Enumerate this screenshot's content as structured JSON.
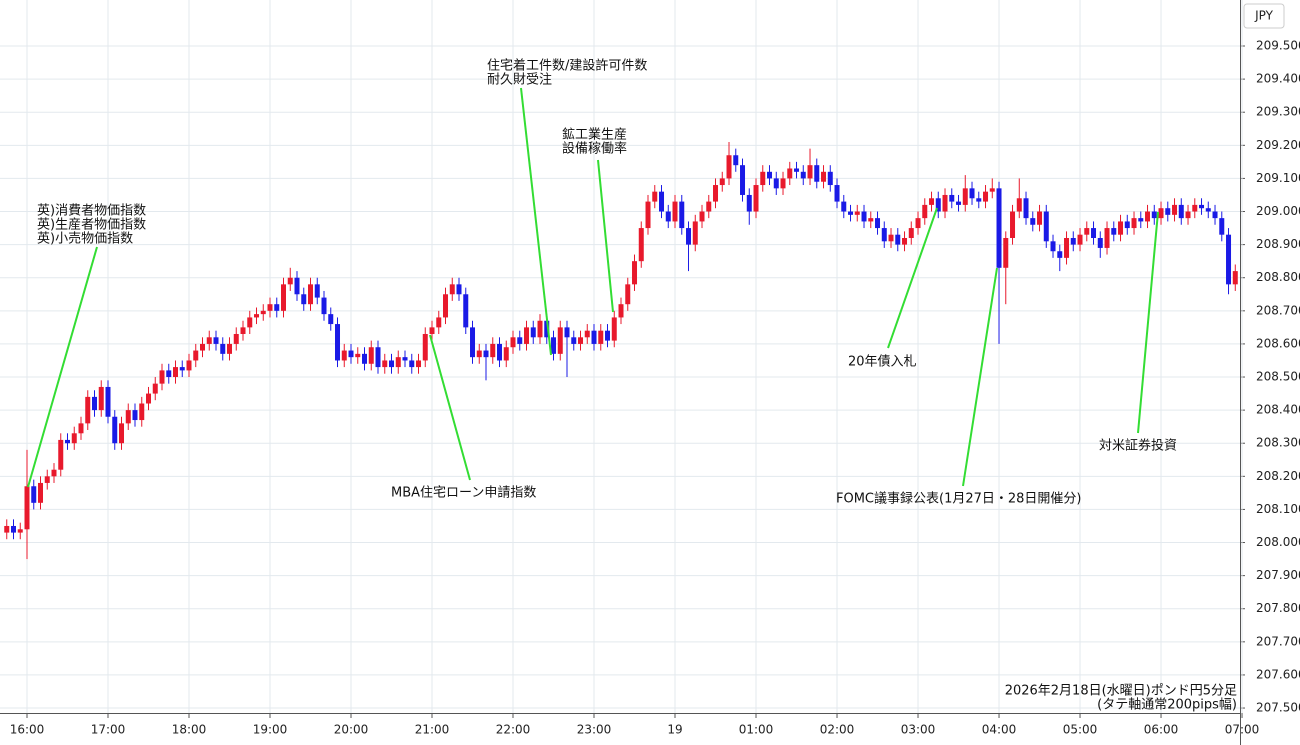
{
  "chart_data": {
    "type": "candlestick",
    "currency": "JPY",
    "footnote": [
      "2026年2月18日(水曜日)ポンド円5分足",
      "(タテ軸通常200pips幅)"
    ],
    "up_color": "#e8192c",
    "down_color": "#1a1ae6",
    "grid": true,
    "annotations": [
      {
        "text": [
          "英)消費者物価指数",
          "英)生産者物価指数",
          "英)小売物価指数"
        ]
      },
      {
        "text": [
          "住宅着工件数/建設許可件数",
          "耐久財受注"
        ]
      },
      {
        "text": [
          "鉱工業生産",
          "設備稼働率"
        ]
      },
      {
        "text": [
          "MBA住宅ローン申請指数"
        ]
      },
      {
        "text": [
          "20年債入札"
        ]
      },
      {
        "text": [
          "FOMC議事録公表(1月27日・28日開催分)"
        ]
      },
      {
        "text": [
          "対米証券投資"
        ]
      }
    ],
    "xlim": [
      -1,
      182.7
    ],
    "xticks": [
      {
        "value": 3,
        "label": "16:00"
      },
      {
        "value": 15,
        "label": "17:00"
      },
      {
        "value": 27,
        "label": "18:00"
      },
      {
        "value": 39,
        "label": "19:00"
      },
      {
        "value": 51,
        "label": "20:00"
      },
      {
        "value": 63,
        "label": "21:00"
      },
      {
        "value": 75,
        "label": "22:00"
      },
      {
        "value": 87,
        "label": "23:00"
      },
      {
        "value": 99,
        "label": "19"
      },
      {
        "value": 111,
        "label": "01:00"
      },
      {
        "value": 123,
        "label": "02:00"
      },
      {
        "value": 135,
        "label": "03:00"
      },
      {
        "value": 147,
        "label": "04:00"
      },
      {
        "value": 159,
        "label": "05:00"
      },
      {
        "value": 171,
        "label": "06:00"
      },
      {
        "value": 183,
        "label": "07:00"
      }
    ],
    "ylim": [
      207.485,
      209.639
    ],
    "yticks": [
      {
        "value": 207.5,
        "label": "207.500"
      },
      {
        "value": 207.6,
        "label": "207.600"
      },
      {
        "value": 207.7,
        "label": "207.700"
      },
      {
        "value": 207.8,
        "label": "207.800"
      },
      {
        "value": 207.9,
        "label": "207.900"
      },
      {
        "value": 208.0,
        "label": "208.000"
      },
      {
        "value": 208.1,
        "label": "208.100"
      },
      {
        "value": 208.2,
        "label": "208.200"
      },
      {
        "value": 208.3,
        "label": "208.300"
      },
      {
        "value": 208.4,
        "label": "208.400"
      },
      {
        "value": 208.5,
        "label": "208.500"
      },
      {
        "value": 208.6,
        "label": "208.600"
      },
      {
        "value": 208.7,
        "label": "208.700"
      },
      {
        "value": 208.8,
        "label": "208.800"
      },
      {
        "value": 208.9,
        "label": "208.900"
      },
      {
        "value": 209.0,
        "label": "209.000"
      },
      {
        "value": 209.1,
        "label": "209.100"
      },
      {
        "value": 209.2,
        "label": "209.200"
      },
      {
        "value": 209.3,
        "label": "209.300"
      },
      {
        "value": 209.4,
        "label": "209.400"
      },
      {
        "value": 209.5,
        "label": "209.500"
      }
    ],
    "candles": [
      [
        208.03,
        208.07,
        208.01,
        208.05
      ],
      [
        208.05,
        208.07,
        208.01,
        208.03
      ],
      [
        208.03,
        208.06,
        208.01,
        208.04
      ],
      [
        208.04,
        208.28,
        207.95,
        208.17
      ],
      [
        208.17,
        208.19,
        208.1,
        208.12
      ],
      [
        208.12,
        208.2,
        208.1,
        208.18
      ],
      [
        208.18,
        208.22,
        208.16,
        208.2
      ],
      [
        208.2,
        208.24,
        208.18,
        208.22
      ],
      [
        208.22,
        208.33,
        208.2,
        208.31
      ],
      [
        208.31,
        208.33,
        208.28,
        208.3
      ],
      [
        208.3,
        208.35,
        208.28,
        208.33
      ],
      [
        208.33,
        208.38,
        208.31,
        208.36
      ],
      [
        208.36,
        208.46,
        208.34,
        208.44
      ],
      [
        208.44,
        208.46,
        208.38,
        208.4
      ],
      [
        208.4,
        208.49,
        208.38,
        208.47
      ],
      [
        208.47,
        208.49,
        208.36,
        208.38
      ],
      [
        208.38,
        208.4,
        208.28,
        208.3
      ],
      [
        208.3,
        208.38,
        208.28,
        208.36
      ],
      [
        208.36,
        208.42,
        208.34,
        208.4
      ],
      [
        208.4,
        208.42,
        208.35,
        208.37
      ],
      [
        208.37,
        208.44,
        208.35,
        208.42
      ],
      [
        208.42,
        208.47,
        208.4,
        208.45
      ],
      [
        208.45,
        208.5,
        208.43,
        208.48
      ],
      [
        208.48,
        208.54,
        208.46,
        208.52
      ],
      [
        208.52,
        208.54,
        208.48,
        208.5
      ],
      [
        208.5,
        208.55,
        208.48,
        208.53
      ],
      [
        208.53,
        208.55,
        208.5,
        208.52
      ],
      [
        208.52,
        208.57,
        208.5,
        208.55
      ],
      [
        208.55,
        208.6,
        208.53,
        208.58
      ],
      [
        208.58,
        208.62,
        208.56,
        208.6
      ],
      [
        208.6,
        208.64,
        208.58,
        208.62
      ],
      [
        208.62,
        208.64,
        208.58,
        208.6
      ],
      [
        208.6,
        208.62,
        208.55,
        208.57
      ],
      [
        208.57,
        208.62,
        208.55,
        208.6
      ],
      [
        208.6,
        208.65,
        208.58,
        208.63
      ],
      [
        208.63,
        208.67,
        208.61,
        208.65
      ],
      [
        208.65,
        208.7,
        208.63,
        208.68
      ],
      [
        208.68,
        208.71,
        208.66,
        208.69
      ],
      [
        208.69,
        208.72,
        208.67,
        208.7
      ],
      [
        208.7,
        208.74,
        208.68,
        208.72
      ],
      [
        208.72,
        208.74,
        208.68,
        208.7
      ],
      [
        208.7,
        208.8,
        208.68,
        208.78
      ],
      [
        208.78,
        208.83,
        208.76,
        208.8
      ],
      [
        208.8,
        208.82,
        208.73,
        208.75
      ],
      [
        208.75,
        208.77,
        208.7,
        208.72
      ],
      [
        208.72,
        208.8,
        208.7,
        208.78
      ],
      [
        208.78,
        208.8,
        208.72,
        208.74
      ],
      [
        208.74,
        208.76,
        208.67,
        208.69
      ],
      [
        208.69,
        208.71,
        208.64,
        208.66
      ],
      [
        208.66,
        208.68,
        208.53,
        208.55
      ],
      [
        208.55,
        208.6,
        208.53,
        208.58
      ],
      [
        208.58,
        208.6,
        208.54,
        208.56
      ],
      [
        208.56,
        208.59,
        208.54,
        208.57
      ],
      [
        208.57,
        208.59,
        208.52,
        208.54
      ],
      [
        208.54,
        208.61,
        208.52,
        208.59
      ],
      [
        208.59,
        208.61,
        208.51,
        208.53
      ],
      [
        208.53,
        208.57,
        208.51,
        208.55
      ],
      [
        208.55,
        208.57,
        208.51,
        208.53
      ],
      [
        208.53,
        208.58,
        208.51,
        208.56
      ],
      [
        208.56,
        208.58,
        208.53,
        208.55
      ],
      [
        208.55,
        208.57,
        208.51,
        208.53
      ],
      [
        208.53,
        208.57,
        208.51,
        208.55
      ],
      [
        208.55,
        208.65,
        208.53,
        208.63
      ],
      [
        208.63,
        208.67,
        208.61,
        208.65
      ],
      [
        208.65,
        208.7,
        208.63,
        208.68
      ],
      [
        208.68,
        208.77,
        208.66,
        208.75
      ],
      [
        208.75,
        208.8,
        208.73,
        208.78
      ],
      [
        208.78,
        208.8,
        208.73,
        208.75
      ],
      [
        208.75,
        208.77,
        208.63,
        208.65
      ],
      [
        208.65,
        208.67,
        208.54,
        208.56
      ],
      [
        208.56,
        208.6,
        208.54,
        208.58
      ],
      [
        208.58,
        208.6,
        208.49,
        208.56
      ],
      [
        208.56,
        208.62,
        208.54,
        208.6
      ],
      [
        208.6,
        208.62,
        208.53,
        208.55
      ],
      [
        208.55,
        208.61,
        208.53,
        208.59
      ],
      [
        208.59,
        208.64,
        208.57,
        208.62
      ],
      [
        208.62,
        208.64,
        208.58,
        208.6
      ],
      [
        208.6,
        208.67,
        208.58,
        208.65
      ],
      [
        208.65,
        208.67,
        208.6,
        208.62
      ],
      [
        208.62,
        208.69,
        208.6,
        208.67
      ],
      [
        208.67,
        208.69,
        208.6,
        208.62
      ],
      [
        208.62,
        208.64,
        208.55,
        208.57
      ],
      [
        208.57,
        208.67,
        208.55,
        208.65
      ],
      [
        208.65,
        208.67,
        208.5,
        208.62
      ],
      [
        208.62,
        208.64,
        208.58,
        208.6
      ],
      [
        208.6,
        208.64,
        208.58,
        208.62
      ],
      [
        208.62,
        208.66,
        208.6,
        208.64
      ],
      [
        208.64,
        208.66,
        208.58,
        208.6
      ],
      [
        208.6,
        208.66,
        208.58,
        208.64
      ],
      [
        208.64,
        208.66,
        208.59,
        208.61
      ],
      [
        208.61,
        208.7,
        208.59,
        208.68
      ],
      [
        208.68,
        208.74,
        208.66,
        208.72
      ],
      [
        208.72,
        208.8,
        208.7,
        208.78
      ],
      [
        208.78,
        208.87,
        208.76,
        208.85
      ],
      [
        208.85,
        208.97,
        208.83,
        208.95
      ],
      [
        208.95,
        209.05,
        208.93,
        209.03
      ],
      [
        209.03,
        209.08,
        209.01,
        209.06
      ],
      [
        209.06,
        209.08,
        208.98,
        209.0
      ],
      [
        209.0,
        209.02,
        208.95,
        208.97
      ],
      [
        208.97,
        209.05,
        208.95,
        209.03
      ],
      [
        209.03,
        209.05,
        208.93,
        208.95
      ],
      [
        208.95,
        208.97,
        208.82,
        208.9
      ],
      [
        208.9,
        208.99,
        208.88,
        208.97
      ],
      [
        208.97,
        209.02,
        208.95,
        209.0
      ],
      [
        209.0,
        209.05,
        208.98,
        209.03
      ],
      [
        209.03,
        209.1,
        209.01,
        209.08
      ],
      [
        209.08,
        209.12,
        209.06,
        209.1
      ],
      [
        209.1,
        209.21,
        209.08,
        209.17
      ],
      [
        209.17,
        209.19,
        209.12,
        209.14
      ],
      [
        209.14,
        209.16,
        209.03,
        209.05
      ],
      [
        209.05,
        209.07,
        208.96,
        209.0
      ],
      [
        209.0,
        209.1,
        208.98,
        209.08
      ],
      [
        209.08,
        209.14,
        209.06,
        209.12
      ],
      [
        209.12,
        209.14,
        209.08,
        209.1
      ],
      [
        209.1,
        209.12,
        209.05,
        209.07
      ],
      [
        209.07,
        209.12,
        209.05,
        209.1
      ],
      [
        209.1,
        209.15,
        209.08,
        209.13
      ],
      [
        209.13,
        209.15,
        209.1,
        209.12
      ],
      [
        209.12,
        209.14,
        209.08,
        209.1
      ],
      [
        209.1,
        209.19,
        209.08,
        209.14
      ],
      [
        209.14,
        209.16,
        209.07,
        209.09
      ],
      [
        209.09,
        209.14,
        209.07,
        209.12
      ],
      [
        209.12,
        209.14,
        209.06,
        209.08
      ],
      [
        209.08,
        209.1,
        209.01,
        209.03
      ],
      [
        209.03,
        209.05,
        208.98,
        209.0
      ],
      [
        209.0,
        209.02,
        208.97,
        208.99
      ],
      [
        208.99,
        209.02,
        208.97,
        209.0
      ],
      [
        209.0,
        209.02,
        208.95,
        208.97
      ],
      [
        208.97,
        209.0,
        208.95,
        208.98
      ],
      [
        208.98,
        209.0,
        208.93,
        208.95
      ],
      [
        208.95,
        208.97,
        208.89,
        208.91
      ],
      [
        208.91,
        208.95,
        208.89,
        208.93
      ],
      [
        208.93,
        208.95,
        208.88,
        208.9
      ],
      [
        208.9,
        208.94,
        208.88,
        208.92
      ],
      [
        208.92,
        208.97,
        208.9,
        208.95
      ],
      [
        208.95,
        209.0,
        208.93,
        208.98
      ],
      [
        208.98,
        209.04,
        208.96,
        209.02
      ],
      [
        209.02,
        209.06,
        209.0,
        209.04
      ],
      [
        209.04,
        209.06,
        208.98,
        209.0
      ],
      [
        209.0,
        209.07,
        208.98,
        209.05
      ],
      [
        209.05,
        209.07,
        209.01,
        209.03
      ],
      [
        209.03,
        209.05,
        209.0,
        209.02
      ],
      [
        209.02,
        209.11,
        209.0,
        209.07
      ],
      [
        209.07,
        209.09,
        209.02,
        209.04
      ],
      [
        209.04,
        209.06,
        209.01,
        209.03
      ],
      [
        209.03,
        209.08,
        209.01,
        209.06
      ],
      [
        209.06,
        209.1,
        209.04,
        209.07
      ],
      [
        209.07,
        209.09,
        208.6,
        208.83
      ],
      [
        208.83,
        208.94,
        208.72,
        208.92
      ],
      [
        208.92,
        209.02,
        208.9,
        209.0
      ],
      [
        209.0,
        209.1,
        208.98,
        209.04
      ],
      [
        209.04,
        209.06,
        208.96,
        208.98
      ],
      [
        208.98,
        209.0,
        208.94,
        208.96
      ],
      [
        208.96,
        209.02,
        208.94,
        209.0
      ],
      [
        209.0,
        209.02,
        208.89,
        208.91
      ],
      [
        208.91,
        208.93,
        208.86,
        208.88
      ],
      [
        208.88,
        208.9,
        208.82,
        208.86
      ],
      [
        208.86,
        208.94,
        208.84,
        208.92
      ],
      [
        208.92,
        208.94,
        208.88,
        208.9
      ],
      [
        208.9,
        208.95,
        208.88,
        208.93
      ],
      [
        208.93,
        208.97,
        208.91,
        208.95
      ],
      [
        208.95,
        208.97,
        208.9,
        208.92
      ],
      [
        208.92,
        208.94,
        208.86,
        208.89
      ],
      [
        208.89,
        208.97,
        208.87,
        208.95
      ],
      [
        208.95,
        208.97,
        208.91,
        208.93
      ],
      [
        208.93,
        208.99,
        208.91,
        208.97
      ],
      [
        208.97,
        208.99,
        208.93,
        208.95
      ],
      [
        208.95,
        209.0,
        208.93,
        208.98
      ],
      [
        208.98,
        209.0,
        208.95,
        208.97
      ],
      [
        208.97,
        209.02,
        208.95,
        209.0
      ],
      [
        209.0,
        209.02,
        208.96,
        208.98
      ],
      [
        208.98,
        209.03,
        208.96,
        209.01
      ],
      [
        209.01,
        209.03,
        208.97,
        208.99
      ],
      [
        208.99,
        209.04,
        208.97,
        209.02
      ],
      [
        209.02,
        209.04,
        208.96,
        208.98
      ],
      [
        208.98,
        209.02,
        208.96,
        209.0
      ],
      [
        209.0,
        209.04,
        208.98,
        209.02
      ],
      [
        209.02,
        209.04,
        208.99,
        209.01
      ],
      [
        209.01,
        209.03,
        208.98,
        209.0
      ],
      [
        209.0,
        209.02,
        208.96,
        208.98
      ],
      [
        208.98,
        209.0,
        208.91,
        208.93
      ],
      [
        208.93,
        208.95,
        208.75,
        208.78
      ],
      [
        208.78,
        208.84,
        208.76,
        208.82
      ]
    ]
  }
}
